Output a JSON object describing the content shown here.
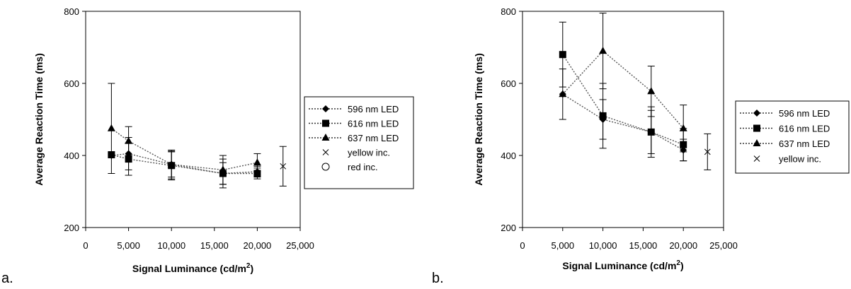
{
  "chart_data": [
    {
      "type": "line",
      "panel_label": "a.",
      "xlabel": "Signal Luminance (cd/m",
      "xlabel_sup": "2",
      "xlabel_suffix": ")",
      "ylabel": "Average Reaction Time (ms)",
      "xlim": [
        0,
        25000
      ],
      "ylim": [
        200,
        800
      ],
      "xticks": [
        0,
        5000,
        10000,
        15000,
        20000,
        25000
      ],
      "xtick_labels": [
        "0",
        "5,000",
        "10,000",
        "15,000",
        "20,000",
        "25,000"
      ],
      "yticks": [
        200,
        400,
        600,
        800
      ],
      "ytick_labels": [
        "200",
        "400",
        "600",
        "800"
      ],
      "grid": false,
      "legend_position": "right",
      "series": [
        {
          "name": "596 nm LED",
          "marker": "diamond",
          "color": "#000000",
          "line": "dotted",
          "x": [
            3000,
            5000,
            10000,
            16000,
            20000
          ],
          "y": [
            400,
            405,
            375,
            350,
            355
          ],
          "err": [
            0,
            45,
            35,
            30,
            15
          ]
        },
        {
          "name": "616 nm LED",
          "marker": "square",
          "color": "#000000",
          "line": "dotted",
          "x": [
            3000,
            5000,
            10000,
            16000,
            20000
          ],
          "y": [
            402,
            390,
            372,
            350,
            350
          ],
          "err": [
            0,
            45,
            40,
            40,
            15
          ]
        },
        {
          "name": "637 nm LED",
          "marker": "triangle",
          "color": "#000000",
          "line": "dotted",
          "x": [
            3000,
            5000,
            10000,
            16000,
            20000
          ],
          "y": [
            475,
            440,
            375,
            360,
            380
          ],
          "err": [
            125,
            40,
            40,
            40,
            25
          ]
        },
        {
          "name": "yellow inc.",
          "marker": "cross",
          "color": "#000000",
          "line": "none",
          "x": [
            23000
          ],
          "y": [
            370
          ],
          "err": [
            55
          ]
        },
        {
          "name": "red inc.",
          "marker": "circle",
          "color": "#000000",
          "line": "none",
          "x": [],
          "y": [],
          "err": []
        }
      ]
    },
    {
      "type": "line",
      "panel_label": "b.",
      "xlabel": "Signal Luminance (cd/m",
      "xlabel_sup": "2",
      "xlabel_suffix": ")",
      "ylabel": "Average Reaction Time (ms)",
      "xlim": [
        0,
        25000
      ],
      "ylim": [
        200,
        800
      ],
      "xticks": [
        0,
        5000,
        10000,
        15000,
        20000,
        25000
      ],
      "xtick_labels": [
        "0",
        "5,000",
        "10,000",
        "15,000",
        "20,000",
        "25,000"
      ],
      "yticks": [
        200,
        400,
        600,
        800
      ],
      "ytick_labels": [
        "200",
        "400",
        "600",
        "800"
      ],
      "grid": false,
      "legend_position": "right",
      "series": [
        {
          "name": "596 nm LED",
          "marker": "diamond",
          "color": "#000000",
          "line": "dotted",
          "x": [
            5000,
            10000,
            16000,
            20000
          ],
          "y": [
            570,
            500,
            465,
            415
          ],
          "err": [
            70,
            55,
            60,
            30
          ]
        },
        {
          "name": "616 nm LED",
          "marker": "square",
          "color": "#000000",
          "line": "dotted",
          "x": [
            5000,
            10000,
            16000,
            20000
          ],
          "y": [
            680,
            510,
            465,
            430
          ],
          "err": [
            90,
            90,
            70,
            45
          ]
        },
        {
          "name": "637 nm LED",
          "marker": "triangle",
          "color": "#000000",
          "line": "dotted",
          "x": [
            5000,
            10000,
            16000,
            20000
          ],
          "y": [
            570,
            690,
            578,
            475
          ],
          "err": [
            0,
            105,
            70,
            65
          ]
        },
        {
          "name": "yellow inc.",
          "marker": "cross",
          "color": "#000000",
          "line": "none",
          "x": [
            23000
          ],
          "y": [
            410
          ],
          "err": [
            50
          ]
        }
      ]
    }
  ]
}
